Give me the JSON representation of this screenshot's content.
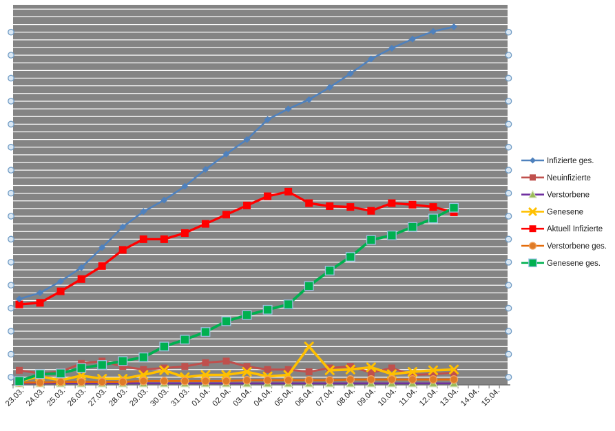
{
  "chart_data": {
    "type": "line",
    "title": "",
    "xlabel": "",
    "ylabel": "",
    "y_axis_note": "no numeric y-axis labels visible; values estimated in minor-gridline units (1 unit = 1 horizontal gridline)",
    "ylim": [
      0,
      49
    ],
    "grid": "horizontal white gridlines on gray plot area, selection handles on every 3rd gridline",
    "legend_position": "right",
    "categories": [
      "23.03.",
      "24.03.",
      "25.03.",
      "26.03.",
      "27.03.",
      "28.03.",
      "29.03.",
      "30.03.",
      "31.03.",
      "01.04.",
      "02.04.",
      "03.04.",
      "04.04.",
      "05.04.",
      "06.04.",
      "07.04.",
      "08.04.",
      "09.04.",
      "10.04.",
      "11.04.",
      "12.04.",
      "13.04.",
      "14.04.",
      "15.04."
    ],
    "data_points_end_at": "13.04.",
    "series": [
      {
        "name": "Infizierte ges.",
        "color": "#4F81BD",
        "width": 2.6,
        "marker": "diamond",
        "marker_color": "#4F81BD",
        "marker_border": "",
        "msize": 5,
        "values": [
          11.2,
          12.0,
          13.5,
          15.3,
          17.9,
          20.6,
          22.6,
          24.1,
          25.9,
          28.1,
          30.1,
          32.0,
          34.6,
          36.0,
          37.2,
          38.8,
          40.6,
          42.5,
          43.9,
          45.1,
          46.1,
          46.7
        ]
      },
      {
        "name": "Neuinfizierte",
        "color": "#C0504D",
        "width": 3.0,
        "marker": "square",
        "marker_color": "#C0504D",
        "marker_border": "",
        "msize": 5,
        "values": [
          1.9,
          1.5,
          1.7,
          2.8,
          3.1,
          2.4,
          2.0,
          2.2,
          2.4,
          2.9,
          3.1,
          2.4,
          2.0,
          2.0,
          1.7,
          2.2,
          2.4,
          1.6,
          2.2,
          1.3,
          1.4,
          1.6
        ]
      },
      {
        "name": "Verstorbene",
        "color": "#7030A0",
        "width": 2.6,
        "marker": "triangle",
        "marker_color": "#9BBB59",
        "marker_border": "#D7E4BD",
        "msize": 6,
        "values": [
          0.2,
          0.2,
          0.2,
          0.2,
          0.2,
          0.2,
          0.2,
          0.2,
          0.2,
          0.2,
          0.2,
          0.2,
          0.2,
          0.2,
          0.2,
          0.2,
          0.2,
          0.2,
          0.2,
          0.2,
          0.2,
          0.2
        ]
      },
      {
        "name": "Genesene",
        "color": "#FFC000",
        "width": 3.6,
        "marker": "x",
        "marker_color": "#FFC000",
        "marker_border": "",
        "msize": 5.5,
        "values": [
          0.5,
          1.1,
          0.6,
          1.2,
          0.8,
          0.8,
          1.3,
          1.9,
          1.0,
          1.3,
          1.3,
          1.7,
          1.1,
          1.3,
          5.0,
          1.9,
          2.0,
          2.3,
          1.4,
          1.7,
          1.9,
          2.0
        ]
      },
      {
        "name": "Aktuell Infizierte",
        "color": "#FF0000",
        "width": 3.4,
        "marker": "square",
        "marker_color": "#FF0000",
        "marker_border": "",
        "msize": 5.5,
        "values": [
          10.5,
          10.7,
          12.2,
          13.8,
          15.5,
          17.6,
          19.0,
          19.0,
          19.8,
          21.0,
          22.2,
          23.4,
          24.6,
          25.2,
          23.7,
          23.3,
          23.2,
          22.7,
          23.7,
          23.5,
          23.2,
          22.5
        ]
      },
      {
        "name": "Verstorbene ges.",
        "color": "#E46C0A",
        "width": 2.8,
        "marker": "circle",
        "marker_color": "#DF7B27",
        "marker_border": "#F2A25C",
        "msize": 5.5,
        "values": [
          0.3,
          0.3,
          0.4,
          0.4,
          0.4,
          0.4,
          0.5,
          0.5,
          0.5,
          0.5,
          0.5,
          0.6,
          0.6,
          0.6,
          0.6,
          0.6,
          0.7,
          0.7,
          0.7,
          0.7,
          0.7,
          0.7
        ]
      },
      {
        "name": "Genesene ges.",
        "color": "#00B050",
        "width": 3.8,
        "marker": "square",
        "marker_color": "#00B050",
        "marker_border": "#9DC3E6",
        "msize": 6.3,
        "values": [
          0.5,
          1.4,
          1.5,
          2.2,
          2.6,
          3.1,
          3.6,
          5.0,
          5.9,
          6.9,
          8.3,
          9.1,
          9.8,
          10.5,
          12.9,
          14.9,
          16.7,
          18.9,
          19.5,
          20.6,
          21.7,
          23.1
        ]
      }
    ],
    "draw_order": [
      1,
      2,
      3,
      5,
      4,
      6,
      0
    ]
  },
  "style": {
    "plot_bg": "#848484",
    "gridline": "#FFFFFF",
    "axis_color": "#6E6E6E",
    "tick_color": "#6E6E6E",
    "x_label_color": "#262626",
    "legend_text_color": "#1A1A1A",
    "handle_fill": "#DCE9F5",
    "handle_stroke": "#6F9BC4",
    "background": "#FFFFFF"
  }
}
